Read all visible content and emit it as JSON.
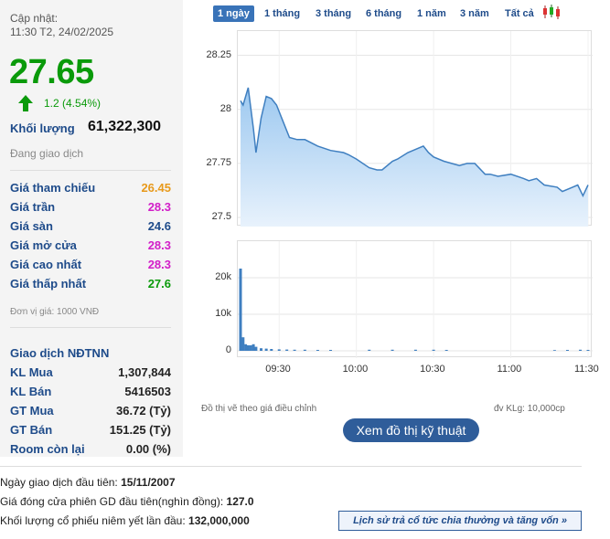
{
  "header": {
    "update_label": "Cập nhật:",
    "update_time": "11:30 T2, 24/02/2025"
  },
  "quote": {
    "price": "27.65",
    "change": "1.2 (4.54%)",
    "direction": "up",
    "volume_label": "Khối lượng",
    "volume_value": "61,322,300",
    "status": "Đang giao dịch"
  },
  "price_rows": [
    {
      "label": "Giá tham chiếu",
      "value": "26.45",
      "color": "#e89a1c"
    },
    {
      "label": "Giá trần",
      "value": "28.3",
      "color": "#d21ec8"
    },
    {
      "label": "Giá sàn",
      "value": "24.6",
      "color": "#1e4b8a"
    },
    {
      "label": "Giá mở cửa",
      "value": "28.3",
      "color": "#d21ec8"
    },
    {
      "label": "Giá cao nhất",
      "value": "28.3",
      "color": "#d21ec8"
    },
    {
      "label": "Giá thấp nhất",
      "value": "27.6",
      "color": "#0a9a0a"
    }
  ],
  "unit_note": "Đơn vị giá: 1000 VNĐ",
  "foreign": {
    "title": "Giao dịch NĐTNN",
    "rows": [
      {
        "label": "KL Mua",
        "value": "1,307,844"
      },
      {
        "label": "KL Bán",
        "value": "5416503"
      },
      {
        "label": "GT Mua",
        "value": "36.72 (Tỷ)"
      },
      {
        "label": "GT Bán",
        "value": "151.25 (Tỷ)"
      },
      {
        "label": "Room còn lại",
        "value": "0.00 (%)"
      }
    ]
  },
  "tabs": [
    {
      "label": "1 ngày",
      "active": true
    },
    {
      "label": "1 tháng",
      "active": false
    },
    {
      "label": "3 tháng",
      "active": false
    },
    {
      "label": "6 tháng",
      "active": false
    },
    {
      "label": "1 năm",
      "active": false
    },
    {
      "label": "3 năm",
      "active": false
    },
    {
      "label": "Tất cả",
      "active": false
    }
  ],
  "chart_icon": "candlestick-icon",
  "chart_data": [
    {
      "type": "area",
      "y_ticks": [
        "28.25",
        "28",
        "27.75",
        "27.5"
      ],
      "ylim": [
        27.5,
        28.32
      ],
      "x_ticks": [
        "09:30",
        "10:00",
        "10:30",
        "11:00",
        "11:30"
      ],
      "color": "#3f7fc0",
      "x": [
        "09:15",
        "09:16",
        "09:18",
        "09:20",
        "09:21",
        "09:23",
        "09:25",
        "09:27",
        "09:29",
        "09:31",
        "09:34",
        "09:37",
        "09:40",
        "09:45",
        "09:50",
        "09:55",
        "09:57",
        "10:00",
        "10:05",
        "10:08",
        "10:10",
        "10:14",
        "10:16",
        "10:20",
        "10:22",
        "10:24",
        "10:26",
        "10:28",
        "10:30",
        "10:34",
        "10:40",
        "10:43",
        "10:46",
        "10:50",
        "10:52",
        "10:55",
        "11:00",
        "11:05",
        "11:07",
        "11:10",
        "11:13",
        "11:18",
        "11:20",
        "11:24",
        "11:26",
        "11:28",
        "11:30"
      ],
      "values": [
        28.04,
        28.02,
        28.1,
        27.91,
        27.8,
        27.96,
        28.06,
        28.05,
        28.02,
        27.96,
        27.87,
        27.86,
        27.86,
        27.83,
        27.81,
        27.8,
        27.79,
        27.77,
        27.73,
        27.72,
        27.72,
        27.76,
        27.77,
        27.8,
        27.81,
        27.82,
        27.83,
        27.8,
        27.78,
        27.76,
        27.74,
        27.75,
        27.75,
        27.7,
        27.7,
        27.69,
        27.7,
        27.68,
        27.67,
        27.68,
        27.65,
        27.64,
        27.62,
        27.64,
        27.65,
        27.6,
        27.65
      ]
    },
    {
      "type": "bar",
      "title": "đv KLg: 10,000cp",
      "y_ticks": [
        "20k",
        "10k",
        "0"
      ],
      "ylim": [
        0,
        22000
      ],
      "x": [
        "09:15",
        "09:16",
        "09:17",
        "09:18",
        "09:19",
        "09:20",
        "09:21",
        "09:23",
        "09:25",
        "09:27",
        "09:30",
        "09:33",
        "09:36",
        "09:40",
        "09:45",
        "09:50",
        "10:05",
        "10:14",
        "10:23",
        "10:30",
        "10:35",
        "11:17",
        "11:22",
        "11:27",
        "11:30"
      ],
      "values": [
        22500,
        3700,
        1800,
        1500,
        1500,
        1800,
        1100,
        700,
        600,
        500,
        400,
        350,
        300,
        300,
        250,
        250,
        300,
        300,
        300,
        300,
        250,
        200,
        250,
        300,
        250
      ]
    }
  ],
  "notes": {
    "adjusted": "Đồ thị vẽ theo giá điều chỉnh",
    "volume_unit": "đv KLg: 10,000cp"
  },
  "tech_button": "Xem đồ thị kỹ thuật",
  "bottom_info": [
    {
      "label": "Ngày giao dịch đầu tiên: ",
      "value": "15/11/2007"
    },
    {
      "label": "Giá đóng cửa phiên GD đầu tiên(nghìn đồng): ",
      "value": "127.0"
    },
    {
      "label": "Khối lượng cổ phiếu niêm yết lần đầu: ",
      "value": "132,000,000"
    }
  ],
  "history_button": "Lịch sử trả cổ tức chia thưởng và tăng vốn »"
}
